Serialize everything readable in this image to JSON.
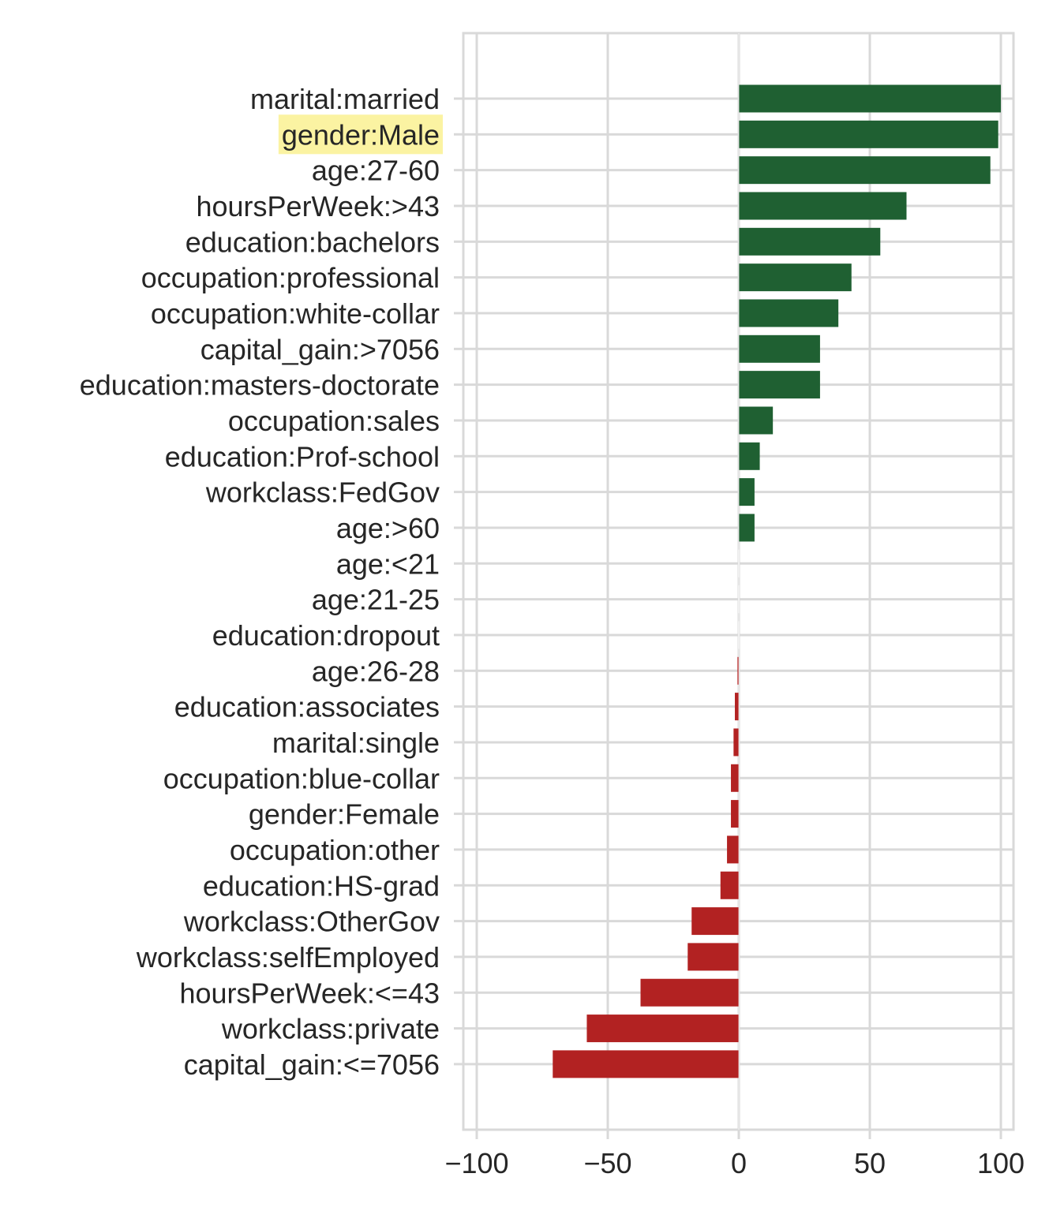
{
  "chart_data": {
    "type": "bar",
    "orientation": "horizontal",
    "title": "",
    "xlabel": "",
    "ylabel": "",
    "xlim": [
      -100,
      100
    ],
    "x_ticks": [
      -100,
      -50,
      0,
      50,
      100
    ],
    "x_tick_labels": [
      "−100",
      "−50",
      "0",
      "50",
      "100"
    ],
    "grid": true,
    "highlighted_category": "gender:Male",
    "colors": {
      "positive": "#1f6032",
      "negative": "#b22222",
      "highlight": "#fbf3a2",
      "grid": "#d9d9d9",
      "text": "#262626"
    },
    "categories": [
      "marital:married",
      "gender:Male",
      "age:27-60",
      "hoursPerWeek:>43",
      "education:bachelors",
      "occupation:professional",
      "occupation:white-collar",
      "capital_gain:>7056",
      "education:masters-doctorate",
      "occupation:sales",
      "education:Prof-school",
      "workclass:FedGov",
      "age:>60",
      "age:<21",
      "age:21-25",
      "education:dropout",
      "age:26-28",
      "education:associates",
      "marital:single",
      "occupation:blue-collar",
      "gender:Female",
      "occupation:other",
      "education:HS-grad",
      "workclass:OtherGov",
      "workclass:selfEmployed",
      "hoursPerWeek:<=43",
      "workclass:private",
      "capital_gain:<=7056"
    ],
    "values": [
      100,
      99,
      96,
      64,
      54,
      43,
      38,
      31,
      31,
      13,
      8,
      6,
      6,
      0,
      0,
      0,
      -0.5,
      -1.5,
      -2,
      -3,
      -3,
      -4.5,
      -7,
      -18,
      -19.5,
      -37.5,
      -58,
      -71
    ]
  }
}
